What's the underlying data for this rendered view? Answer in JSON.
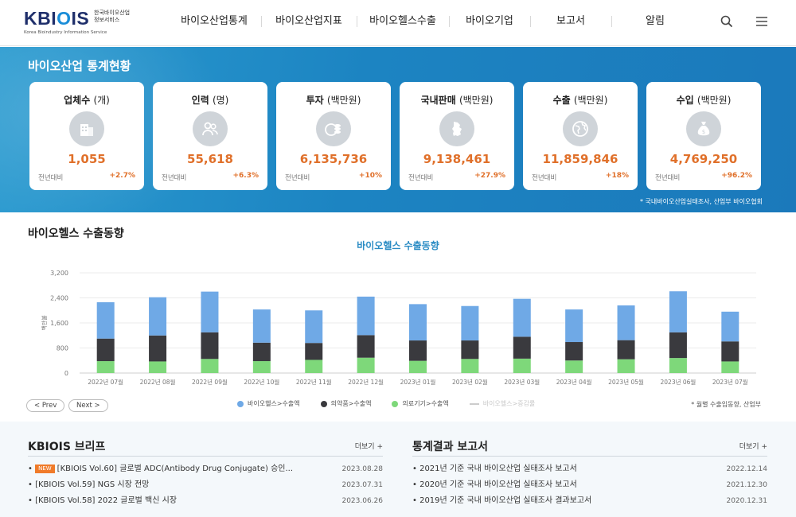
{
  "header": {
    "logo": {
      "main_left": "KBI",
      "main_accent": "O",
      "main_right": "IS",
      "ko_line1": "한국바이오산업",
      "ko_line2": "정보서비스",
      "en": "Korea Bioindustry Information Service"
    },
    "nav": [
      {
        "label": "바이오산업통계"
      },
      {
        "label": "바이오산업지표"
      },
      {
        "label": "바이오헬스수출"
      },
      {
        "label": "바이오기업"
      },
      {
        "label": "보고서"
      },
      {
        "label": "알림"
      }
    ],
    "search_icon": "search-icon",
    "menu_icon": "hamburger-menu-icon"
  },
  "stats": {
    "title": "바이오산업 통계현황",
    "yoy_label": "전년대비",
    "source": "* 국내바이오산업실태조사, 산업부 바이오협회",
    "cards": [
      {
        "label": "업체수",
        "unit": "(개)",
        "value": "1,055",
        "yoy": "+2.7%",
        "icon": "building-icon"
      },
      {
        "label": "인력",
        "unit": "(명)",
        "value": "55,618",
        "yoy": "+6.3%",
        "icon": "people-icon"
      },
      {
        "label": "투자",
        "unit": "(백만원)",
        "value": "6,135,736",
        "yoy": "+10%",
        "icon": "coins-icon"
      },
      {
        "label": "국내판매",
        "unit": "(백만원)",
        "value": "9,138,461",
        "yoy": "+27.9%",
        "icon": "korea-map-icon"
      },
      {
        "label": "수출",
        "unit": "(백만원)",
        "value": "11,859,846",
        "yoy": "+18%",
        "icon": "globe-icon"
      },
      {
        "label": "수입",
        "unit": "(백만원)",
        "value": "4,769,250",
        "yoy": "+96.2%",
        "icon": "money-bag-icon"
      }
    ]
  },
  "chart_section": {
    "title": "바이오헬스 수출동향",
    "prev_label": "< Prev",
    "next_label": "Next >",
    "note": "* 월별 수출입동향, 산업부"
  },
  "chart_data": {
    "type": "bar",
    "stacked": true,
    "title": "바이오헬스 수출동향",
    "xlabel": "",
    "ylabel": "백만불",
    "ylim": [
      0,
      3200
    ],
    "yticks": [
      "0",
      "800",
      "1,600",
      "2,400",
      "3,200"
    ],
    "ytick_values": [
      0,
      800,
      1600,
      2400,
      3200
    ],
    "grid": true,
    "legend_position": "bottom",
    "categories": [
      "2022년 07월",
      "2022년 08월",
      "2022년 09월",
      "2022년 10월",
      "2022년 11월",
      "2022년 12월",
      "2023년 01월",
      "2023년 02월",
      "2023년 03월",
      "2023년 04월",
      "2023년 05월",
      "2023년 06월",
      "2023년 07월"
    ],
    "series": [
      {
        "name": "의료기기>수출액",
        "color": "#7ed87a",
        "values": [
          380,
          370,
          450,
          380,
          420,
          490,
          390,
          450,
          460,
          400,
          440,
          480,
          370
        ]
      },
      {
        "name": "의약품>수출액",
        "color": "#3a3a3e",
        "values": [
          720,
          830,
          850,
          590,
          540,
          720,
          650,
          590,
          700,
          590,
          610,
          820,
          640
        ]
      },
      {
        "name": "바이오헬스>수출액",
        "color": "#6fa9e6",
        "values": [
          1160,
          1220,
          1300,
          1060,
          1040,
          1230,
          1160,
          1100,
          1210,
          1040,
          1110,
          1310,
          950
        ]
      }
    ],
    "legend": [
      {
        "name": "바이오헬스>수출액",
        "color": "#6fa9e6"
      },
      {
        "name": "의약품>수출액",
        "color": "#3a3a3e"
      },
      {
        "name": "의료기기>수출액",
        "color": "#7ed87a"
      },
      {
        "name": "바이오헬스>증감률",
        "color": "#cccccc",
        "muted": true
      }
    ]
  },
  "brief": {
    "title": "KBIOIS 브리프",
    "more": "더보기 +",
    "new_badge": "NEW",
    "posts": [
      {
        "title": "[KBIOIS Vol.60] 글로벌 ADC(Antibody Drug Conjugate) 승인...",
        "date": "2023.08.28",
        "is_new": true
      },
      {
        "title": "[KBIOIS Vol.59] NGS 시장 전망",
        "date": "2023.07.31",
        "is_new": false
      },
      {
        "title": "[KBIOIS Vol.58] 2022 글로벌 백신 시장",
        "date": "2023.06.26",
        "is_new": false
      }
    ]
  },
  "reports": {
    "title": "통계결과 보고서",
    "more": "더보기 +",
    "posts": [
      {
        "title": "2021년 기준 국내 바이오산업 실태조사 보고서",
        "date": "2022.12.14"
      },
      {
        "title": "2020년 기준 국내 바이오산업 실태조사 보고서",
        "date": "2021.12.30"
      },
      {
        "title": "2019년 기준 국내 바이오산업 실태조사 결과보고서",
        "date": "2020.12.31"
      }
    ]
  }
}
